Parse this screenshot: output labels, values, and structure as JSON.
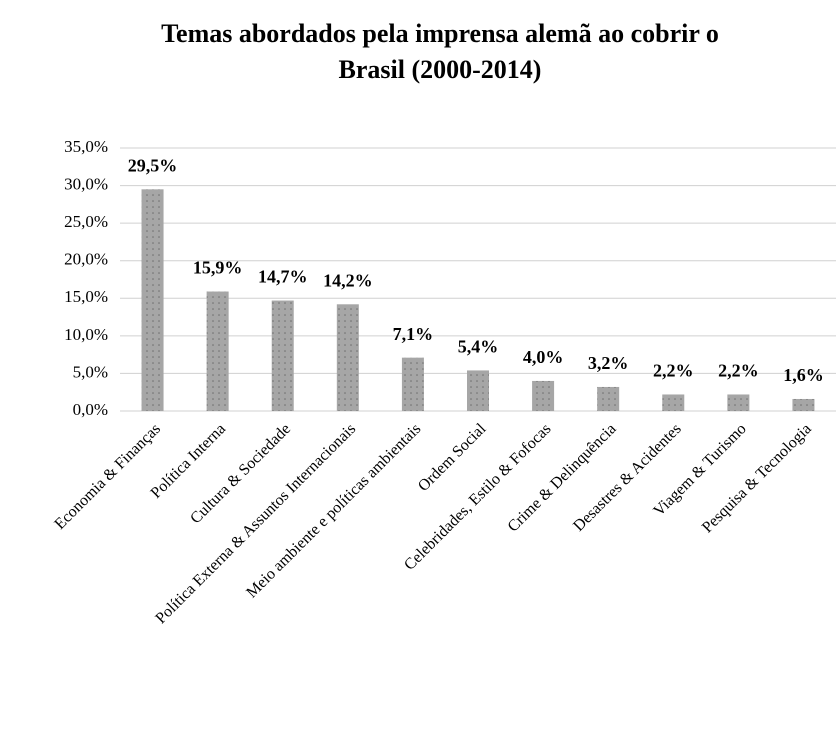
{
  "chart_data": {
    "type": "bar",
    "title": [
      "Temas abordados pela imprensa alemã  ao cobrir o",
      "Brasil (2000-2014)"
    ],
    "categories": [
      "Economia & Finanças",
      "Política Interna",
      "Cultura & Sociedade",
      "Política Externa & Assuntos Internacionais",
      "Meio ambiente e políticas ambientais",
      "Ordem Social",
      "Celebridades, Estilo & Fofocas",
      "Crime & Delinquência",
      "Desastres & Acidentes",
      "Viagem & Turismo",
      "Pesquisa & Tecnologia"
    ],
    "values": [
      29.5,
      15.9,
      14.7,
      14.2,
      7.1,
      5.4,
      4.0,
      3.2,
      2.2,
      2.2,
      1.6
    ],
    "value_labels": [
      "29,5%",
      "15,9%",
      "14,7%",
      "14,2%",
      "7,1%",
      "5,4%",
      "4,0%",
      "3,2%",
      "2,2%",
      "2,2%",
      "1,6%"
    ],
    "color": "#a6a6a6",
    "ylim": [
      0,
      35
    ],
    "yticks": [
      {
        "value": 0,
        "label": "0,0%"
      },
      {
        "value": 5,
        "label": "5,0%"
      },
      {
        "value": 10,
        "label": "10,0%"
      },
      {
        "value": 15,
        "label": "15,0%"
      },
      {
        "value": 20,
        "label": "20,0%"
      },
      {
        "value": 25,
        "label": "25,0%"
      },
      {
        "value": 30,
        "label": "30,0%"
      },
      {
        "value": 35,
        "label": "35,0%"
      }
    ],
    "grid": true
  }
}
